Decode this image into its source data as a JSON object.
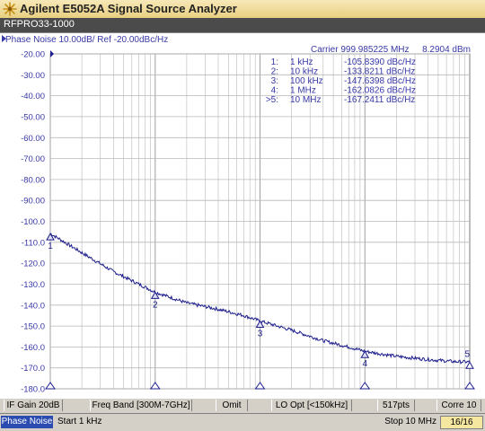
{
  "window": {
    "title": "Agilent E5052A Signal Source Analyzer"
  },
  "channel": {
    "name": "RFPRO33-1000"
  },
  "trace": {
    "header": "Phase Noise 10.00dB/ Ref -20.00dBc/Hz",
    "carrier_label": "Carrier 999.985225 MHz",
    "carrier_power": "8.2904 dBm",
    "markers": [
      {
        "id": "1:",
        "freq": "1 kHz",
        "value": "-105.8390 dBc/Hz",
        "label": "1"
      },
      {
        "id": "2:",
        "freq": "10 kHz",
        "value": "-133.8211 dBc/Hz",
        "label": "2"
      },
      {
        "id": "3:",
        "freq": "100 kHz",
        "value": "-147.6398 dBc/Hz",
        "label": "3"
      },
      {
        "id": "4:",
        "freq": "1 MHz",
        "value": "-162.0826 dBc/Hz",
        "label": "4"
      },
      {
        "id": ">5:",
        "freq": "10 MHz",
        "value": "-167.2411 dBc/Hz",
        "label": "5"
      }
    ]
  },
  "chart_data": {
    "type": "line",
    "x_scale": "log",
    "xlim": [
      1000,
      10000000
    ],
    "ylim": [
      -180,
      -20
    ],
    "yticks": [
      "-20.00",
      "-30.00",
      "-40.00",
      "-50.00",
      "-60.00",
      "-70.00",
      "-80.00",
      "-90.00",
      "-100.0",
      "-110.0",
      "-120.0",
      "-130.0",
      "-140.0",
      "-150.0",
      "-160.0",
      "-170.0",
      "-180.0"
    ],
    "series": [
      {
        "x": [
          1000,
          2000,
          4000,
          7000,
          10000,
          20000,
          40000,
          70000,
          100000,
          200000,
          400000,
          700000,
          1000000,
          2000000,
          4000000,
          7000000,
          10000000
        ],
        "y": [
          -105.8,
          -115,
          -124,
          -130,
          -133.8,
          -139,
          -142,
          -145,
          -147.6,
          -152,
          -157,
          -160,
          -162.1,
          -164.5,
          -166,
          -167,
          -167.2
        ]
      }
    ],
    "markers_x": [
      1000,
      10000,
      100000,
      1000000,
      10000000
    ],
    "markers_y": [
      -105.839,
      -133.8211,
      -147.6398,
      -162.0826,
      -167.2411
    ],
    "grid": true
  },
  "status": {
    "if_gain": "IF Gain 20dB",
    "freq_band": "Freq Band [300M-7GHz]",
    "omit": "Omit",
    "lo_opt": "LO Opt [<150kHz]",
    "points": "517pts",
    "corre": "Corre 10"
  },
  "bottom": {
    "mode": "Phase Noise",
    "start": "Start 1 kHz",
    "stop": "Stop 10 MHz",
    "page": "16/16"
  },
  "colors": {
    "trace": "#1c1c8c",
    "grid": "#b8b8b8",
    "axis_text": "#3838a8",
    "mode_bg": "#2b4bb0",
    "page_bg": "#f5e6a0"
  }
}
